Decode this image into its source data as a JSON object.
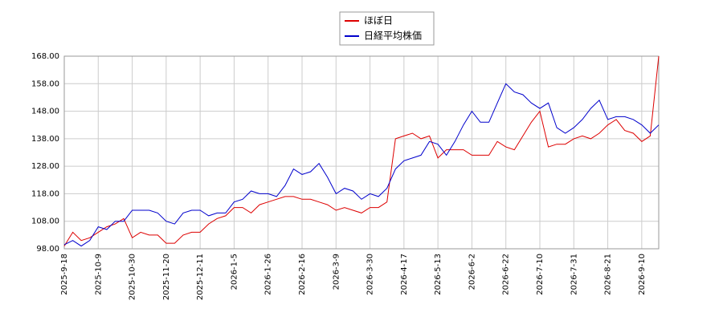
{
  "chart_data": {
    "type": "line",
    "categories": [
      "2025-9-18",
      null,
      null,
      null,
      "2025-10-9",
      null,
      null,
      null,
      "2025-10-30",
      null,
      null,
      null,
      "2025-11-20",
      null,
      null,
      null,
      "2025-12-11",
      null,
      null,
      null,
      "2026-1-5",
      null,
      null,
      null,
      "2026-1-26",
      null,
      null,
      null,
      "2026-2-16",
      null,
      null,
      null,
      "2026-3-9",
      null,
      null,
      null,
      "2026-3-30",
      null,
      null,
      null,
      "2026-4-17",
      null,
      null,
      null,
      "2026-5-13",
      null,
      null,
      null,
      "2026-6-2",
      null,
      null,
      null,
      "2026-6-22",
      null,
      null,
      null,
      "2026-7-10",
      null,
      null,
      null,
      "2026-7-31",
      null,
      null,
      null,
      "2026-8-21",
      null,
      null,
      null,
      "2026-9-10",
      null,
      null
    ],
    "series": [
      {
        "name": "ほぼ日",
        "color": "#dd0000",
        "values": [
          99,
          104,
          101,
          102,
          104,
          106,
          107,
          109,
          102,
          104,
          103,
          103,
          100,
          100,
          103,
          104,
          104,
          107,
          109,
          110,
          113,
          113,
          111,
          114,
          115,
          116,
          117,
          117,
          116,
          116,
          115,
          114,
          112,
          113,
          112,
          111,
          113,
          113,
          115,
          138,
          139,
          140,
          138,
          139,
          131,
          134,
          134,
          134,
          132,
          132,
          132,
          137,
          135,
          134,
          139,
          144,
          148,
          135,
          136,
          136,
          138,
          139,
          138,
          140,
          143,
          145,
          141,
          140,
          137,
          139,
          168
        ]
      },
      {
        "name": "日経平均株価",
        "color": "#0000cc",
        "values": [
          99.5,
          101,
          99,
          101,
          106,
          105,
          108,
          108,
          112,
          112,
          112,
          111,
          108,
          107,
          111,
          112,
          112,
          110,
          111,
          111,
          115,
          116,
          119,
          118,
          118,
          117,
          121,
          127,
          125,
          126,
          129,
          124,
          118,
          120,
          119,
          116,
          118,
          117,
          120,
          127,
          130,
          131,
          132,
          137,
          136,
          132,
          137,
          143,
          148,
          144,
          144,
          151,
          158,
          155,
          154,
          151,
          149,
          151,
          142,
          140,
          142,
          145,
          149,
          152,
          145,
          146,
          146,
          145,
          143,
          140,
          143
        ]
      }
    ],
    "ylim": [
      98,
      168
    ],
    "yticks": [
      {
        "value": 98,
        "label": "98.00"
      },
      {
        "value": 108,
        "label": "108.00"
      },
      {
        "value": 118,
        "label": "118.00"
      },
      {
        "value": 128,
        "label": "128.00"
      },
      {
        "value": 138,
        "label": "138.00"
      },
      {
        "value": 148,
        "label": "148.00"
      },
      {
        "value": 158,
        "label": "158.00"
      },
      {
        "value": 168,
        "label": "168.00"
      }
    ],
    "grid": true
  }
}
